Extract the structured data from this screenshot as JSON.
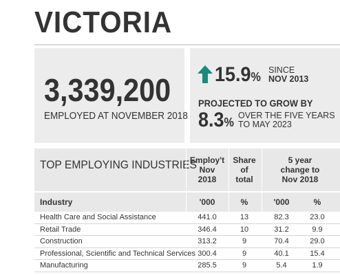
{
  "title": "VICTORIA",
  "stats": {
    "employed_value": "3,339,200",
    "employed_label": "EMPLOYED AT NOVEMBER 2018",
    "growth": {
      "value": "15.9",
      "pct": "%",
      "since_line1": "SINCE",
      "since_line2": "NOV 2013",
      "arrow_icon": "up-arrow-icon",
      "arrow_color": "#1a8a7a"
    },
    "projection": {
      "label": "PROJECTED TO GROW BY",
      "value": "8.3",
      "pct": "%",
      "text_line1": "OVER THE FIVE YEARS",
      "text_line2": "TO MAY 2023"
    }
  },
  "table": {
    "title": "TOP EMPLOYING INDUSTRIES",
    "col_employ": [
      "Employ't",
      "Nov",
      "2018"
    ],
    "col_share": [
      "Share",
      "of",
      "total"
    ],
    "col_change": [
      "5 year",
      "change to",
      "Nov 2018"
    ],
    "sub_industry": "Industry",
    "sub_employ": "'000",
    "sub_share": "%",
    "sub_change_abs": "'000",
    "sub_change_pct": "%",
    "rows": [
      {
        "industry": "Health Care and Social Assistance",
        "employ": "441.0",
        "share": "13",
        "change": "82.3",
        "change_pct": "23.0"
      },
      {
        "industry": "Retail Trade",
        "employ": "346.4",
        "share": "10",
        "change": "31.2",
        "change_pct": "9.9"
      },
      {
        "industry": "Construction",
        "employ": "313.2",
        "share": "9",
        "change": "70.4",
        "change_pct": "29.0"
      },
      {
        "industry": "Professional, Scientific and Technical Services",
        "employ": "300.4",
        "share": "9",
        "change": "40.1",
        "change_pct": "15.4"
      },
      {
        "industry": "Manufacturing",
        "employ": "285.5",
        "share": "9",
        "change": "5.4",
        "change_pct": "1.9"
      }
    ]
  }
}
